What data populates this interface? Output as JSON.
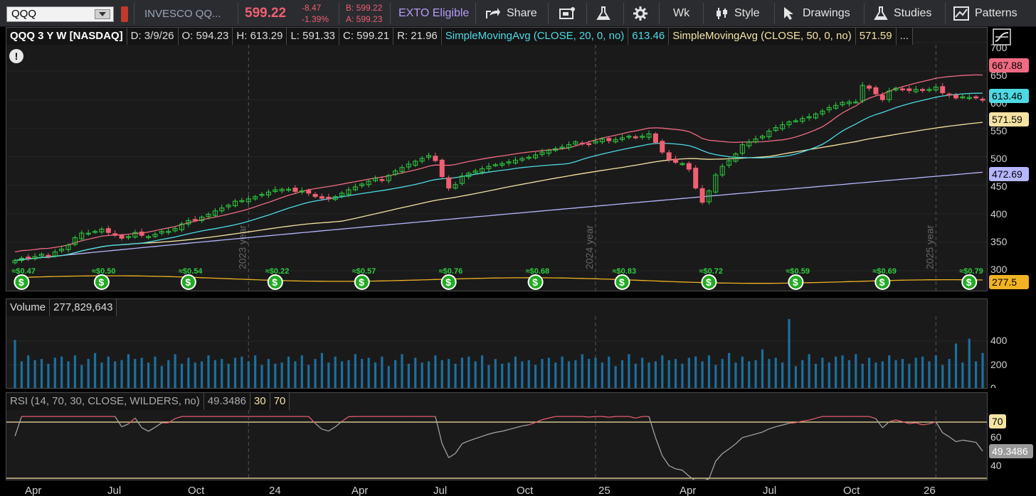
{
  "toolbar": {
    "symbol": "QQQ",
    "name": "INVESCO QQ...",
    "last": "599.22",
    "change": "-8.47",
    "change_pct": "-1.39%",
    "bid": "B: 599.22",
    "ask": "A: 599.23",
    "exto": "EXTO Eligible",
    "share": "Share",
    "timeframe": "Wk",
    "style": "Style",
    "drawings": "Drawings",
    "studies": "Studies",
    "patterns": "Patterns"
  },
  "header": {
    "symbol": "QQQ 3 Y W [NASDAQ]",
    "date": "D: 3/9/26",
    "open": "O: 594.23",
    "high": "H: 613.29",
    "low": "L: 591.33",
    "close": "C: 599.21",
    "range": "R: 21.96",
    "sma20_label": "SimpleMovingAvg (CLOSE, 20, 0, no)",
    "sma20_value": "613.46",
    "sma50_label": "SimpleMovingAvg (CLOSE, 50, 0, no)",
    "sma50_value": "571.59",
    "more": "..."
  },
  "volume": {
    "label": "Volume",
    "value": "277,829,643"
  },
  "rsi": {
    "label": "RSI (14, 70, 30, CLOSE, WILDERS, no)",
    "value": "49.3486",
    "low": "30",
    "high": "70"
  },
  "price_axis": [
    "700",
    "650",
    "600",
    "550",
    "500",
    "450",
    "400",
    "350",
    "300"
  ],
  "price_tags": {
    "upper": "667.88",
    "sma20": "613.46",
    "sma50": "571.59",
    "long": "472.69",
    "bottom": "277.5"
  },
  "volume_axis": [
    "400",
    "200",
    "0"
  ],
  "rsi_axis": [
    "60",
    "40"
  ],
  "rsi_tags": {
    "ob": "70",
    "val": "49.3486"
  },
  "time_axis": [
    "Apr",
    "Jul",
    "Oct",
    "24",
    "Apr",
    "Jul",
    "Oct",
    "25",
    "Apr",
    "Jul",
    "Oct",
    "26"
  ],
  "year_marks": [
    "2023 year",
    "2024 year",
    "2025 year"
  ],
  "dividends": [
    "≈$0.47",
    "≈$0.50",
    "≈$0.54",
    "≈$0.22",
    "≈$0.57",
    "≈$0.76",
    "≈$0.68",
    "≈$0.83",
    "≈$0.72",
    "≈$0.59",
    "≈$0.69",
    "≈$0.79"
  ],
  "colors": {
    "up": "#2ecc40",
    "down": "#ef5f72",
    "sma20": "#4ed9e4",
    "sma50": "#f5e3a2",
    "upper": "#ef6b82",
    "long": "#b6b6ff",
    "bottom": "#f0b323",
    "volume": "#1b6fa0"
  },
  "series": {
    "closes": [
      318,
      322,
      322,
      325,
      329,
      326,
      333,
      338,
      345,
      358,
      366,
      366,
      369,
      373,
      367,
      362,
      357,
      360,
      367,
      362,
      360,
      364,
      369,
      369,
      374,
      382,
      388,
      389,
      394,
      399,
      405,
      410,
      415,
      422,
      423,
      426,
      430,
      434,
      438,
      442,
      443,
      443,
      439,
      440,
      436,
      430,
      427,
      426,
      430,
      436,
      442,
      447,
      452,
      457,
      462,
      458,
      467,
      475,
      481,
      487,
      492,
      497,
      502,
      493,
      465,
      445,
      451,
      466,
      471,
      475,
      479,
      483,
      486,
      488,
      491,
      494,
      497,
      499,
      503,
      508,
      511,
      514,
      517,
      521,
      526,
      523,
      522,
      527,
      531,
      528,
      530,
      533,
      536,
      533,
      536,
      540,
      525,
      508,
      495,
      490,
      488,
      478,
      445,
      420,
      440,
      468,
      483,
      493,
      505,
      521,
      526,
      531,
      536,
      545,
      551,
      556,
      561,
      563,
      567,
      570,
      575,
      580,
      586,
      590,
      595,
      596,
      596,
      625,
      620,
      610,
      600,
      615,
      620,
      618,
      616,
      618,
      616,
      618,
      622,
      612,
      608,
      603,
      605,
      604,
      603,
      599
    ]
  }
}
